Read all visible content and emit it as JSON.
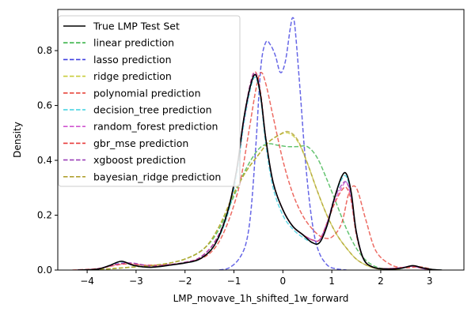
{
  "chart_data": {
    "type": "line",
    "xlabel": "LMP_movave_1h_shifted_1w_forward",
    "ylabel": "Density",
    "xlim": [
      -4.6,
      3.7
    ],
    "ylim": [
      0,
      0.95
    ],
    "xticks": [
      -4,
      -3,
      -2,
      -1,
      0,
      1,
      2,
      3
    ],
    "yticks": [
      0.0,
      0.2,
      0.4,
      0.6,
      0.8
    ],
    "ytick_labels": [
      "0.0",
      "0.2",
      "0.4",
      "0.6",
      "0.8"
    ],
    "legend_position": "upper-left",
    "series": [
      {
        "name": "True LMP Test Set",
        "color": "#000000",
        "dashed": false,
        "x": [
          -4.2,
          -3.8,
          -3.55,
          -3.3,
          -3.05,
          -2.7,
          -2.3,
          -2.0,
          -1.7,
          -1.4,
          -1.15,
          -0.95,
          -0.8,
          -0.65,
          -0.55,
          -0.45,
          -0.35,
          -0.2,
          0.0,
          0.2,
          0.4,
          0.6,
          0.75,
          0.9,
          1.05,
          1.2,
          1.3,
          1.4,
          1.5,
          1.65,
          1.85,
          2.1,
          2.4,
          2.65,
          2.85,
          3.05,
          3.25
        ],
        "y": [
          0.0,
          0.003,
          0.016,
          0.032,
          0.017,
          0.01,
          0.018,
          0.026,
          0.04,
          0.09,
          0.2,
          0.36,
          0.55,
          0.68,
          0.71,
          0.63,
          0.48,
          0.32,
          0.22,
          0.16,
          0.13,
          0.1,
          0.1,
          0.16,
          0.26,
          0.34,
          0.35,
          0.28,
          0.14,
          0.04,
          0.01,
          0.004,
          0.006,
          0.016,
          0.008,
          0.002,
          0.0
        ]
      },
      {
        "name": "linear prediction",
        "color": "#3cb44b",
        "dashed": true,
        "x": [
          -4.0,
          -3.5,
          -3.0,
          -2.5,
          -2.0,
          -1.6,
          -1.3,
          -1.0,
          -0.75,
          -0.5,
          -0.3,
          -0.1,
          0.1,
          0.3,
          0.5,
          0.7,
          0.9,
          1.1,
          1.3,
          1.5,
          1.7,
          1.9,
          2.1,
          2.4
        ],
        "y": [
          0.0,
          0.005,
          0.012,
          0.02,
          0.04,
          0.08,
          0.15,
          0.27,
          0.37,
          0.44,
          0.46,
          0.455,
          0.45,
          0.45,
          0.45,
          0.41,
          0.33,
          0.24,
          0.15,
          0.08,
          0.035,
          0.012,
          0.004,
          0.0
        ]
      },
      {
        "name": "lasso prediction",
        "color": "#4040e0",
        "dashed": true,
        "x": [
          -1.3,
          -1.1,
          -0.9,
          -0.75,
          -0.65,
          -0.55,
          -0.45,
          -0.35,
          -0.25,
          -0.15,
          -0.05,
          0.05,
          0.15,
          0.2,
          0.25,
          0.35,
          0.45,
          0.55,
          0.65,
          0.75,
          0.85,
          0.95,
          1.1,
          1.3
        ],
        "y": [
          0.0,
          0.008,
          0.04,
          0.1,
          0.22,
          0.46,
          0.74,
          0.83,
          0.82,
          0.78,
          0.72,
          0.76,
          0.88,
          0.92,
          0.88,
          0.66,
          0.42,
          0.24,
          0.12,
          0.06,
          0.03,
          0.012,
          0.004,
          0.0
        ]
      },
      {
        "name": "ridge prediction",
        "color": "#c8cc3a",
        "dashed": true,
        "x": [
          -4.0,
          -3.5,
          -3.0,
          -2.5,
          -2.0,
          -1.6,
          -1.3,
          -1.0,
          -0.75,
          -0.5,
          -0.3,
          -0.1,
          0.1,
          0.3,
          0.5,
          0.7,
          0.9,
          1.1,
          1.3,
          1.5,
          1.7,
          1.9,
          2.1,
          2.4
        ],
        "y": [
          0.0,
          0.005,
          0.012,
          0.02,
          0.04,
          0.08,
          0.16,
          0.28,
          0.36,
          0.42,
          0.465,
          0.49,
          0.5,
          0.47,
          0.39,
          0.29,
          0.2,
          0.13,
          0.08,
          0.04,
          0.018,
          0.006,
          0.002,
          0.0
        ]
      },
      {
        "name": "polynomial prediction",
        "color": "#e8463c",
        "dashed": true,
        "x": [
          -4.3,
          -3.8,
          -3.4,
          -3.2,
          -2.8,
          -2.3,
          -1.9,
          -1.5,
          -1.2,
          -0.9,
          -0.7,
          -0.55,
          -0.45,
          -0.35,
          -0.2,
          0.0,
          0.2,
          0.4,
          0.6,
          0.8,
          1.0,
          1.2,
          1.35,
          1.5,
          1.7,
          1.9,
          2.2,
          2.5,
          2.8,
          3.1
        ],
        "y": [
          0.0,
          0.005,
          0.018,
          0.022,
          0.018,
          0.02,
          0.03,
          0.06,
          0.14,
          0.3,
          0.5,
          0.66,
          0.72,
          0.68,
          0.56,
          0.4,
          0.28,
          0.2,
          0.15,
          0.12,
          0.12,
          0.17,
          0.28,
          0.3,
          0.18,
          0.07,
          0.02,
          0.008,
          0.012,
          0.0
        ]
      },
      {
        "name": "decision_tree prediction",
        "color": "#3cd0e0",
        "dashed": true,
        "x": [
          -4.2,
          -3.8,
          -3.55,
          -3.3,
          -3.05,
          -2.7,
          -2.3,
          -2.0,
          -1.7,
          -1.4,
          -1.15,
          -0.95,
          -0.8,
          -0.65,
          -0.55,
          -0.45,
          -0.35,
          -0.2,
          0.0,
          0.2,
          0.4,
          0.6,
          0.75,
          0.9,
          1.05,
          1.2,
          1.3,
          1.4,
          1.5,
          1.65,
          1.85,
          2.1,
          2.4,
          2.65,
          2.85,
          3.05,
          3.25
        ],
        "y": [
          0.0,
          0.003,
          0.016,
          0.03,
          0.017,
          0.01,
          0.018,
          0.026,
          0.04,
          0.09,
          0.19,
          0.34,
          0.53,
          0.67,
          0.7,
          0.62,
          0.46,
          0.3,
          0.2,
          0.15,
          0.12,
          0.1,
          0.1,
          0.16,
          0.26,
          0.33,
          0.34,
          0.27,
          0.14,
          0.04,
          0.01,
          0.004,
          0.006,
          0.015,
          0.008,
          0.002,
          0.0
        ]
      },
      {
        "name": "random_forest prediction",
        "color": "#d055d0",
        "dashed": true,
        "x": [
          -4.2,
          -3.8,
          -3.4,
          -3.1,
          -2.7,
          -2.3,
          -2.0,
          -1.7,
          -1.4,
          -1.15,
          -0.95,
          -0.8,
          -0.65,
          -0.55,
          -0.45,
          -0.35,
          -0.2,
          0.0,
          0.2,
          0.4,
          0.6,
          0.75,
          0.9,
          1.05,
          1.2,
          1.3,
          1.4,
          1.5,
          1.65,
          1.85,
          2.1,
          2.4,
          2.65,
          2.85,
          3.05
        ],
        "y": [
          0.0,
          0.004,
          0.02,
          0.025,
          0.015,
          0.02,
          0.028,
          0.045,
          0.1,
          0.2,
          0.36,
          0.54,
          0.68,
          0.71,
          0.63,
          0.48,
          0.32,
          0.22,
          0.16,
          0.13,
          0.11,
          0.11,
          0.17,
          0.25,
          0.3,
          0.32,
          0.26,
          0.14,
          0.04,
          0.01,
          0.005,
          0.008,
          0.014,
          0.006,
          0.0
        ]
      },
      {
        "name": "gbr_mse prediction",
        "color": "#e83a3a",
        "dashed": true,
        "x": [
          -4.2,
          -3.8,
          -3.4,
          -3.1,
          -2.7,
          -2.3,
          -2.0,
          -1.7,
          -1.4,
          -1.15,
          -0.95,
          -0.8,
          -0.65,
          -0.55,
          -0.45,
          -0.35,
          -0.2,
          0.0,
          0.2,
          0.4,
          0.6,
          0.75,
          0.9,
          1.05,
          1.2,
          1.3,
          1.4,
          1.5,
          1.65,
          1.85,
          2.1,
          2.4,
          2.65,
          2.85,
          3.05
        ],
        "y": [
          0.0,
          0.004,
          0.02,
          0.024,
          0.015,
          0.02,
          0.028,
          0.045,
          0.1,
          0.2,
          0.36,
          0.55,
          0.69,
          0.72,
          0.64,
          0.48,
          0.32,
          0.22,
          0.16,
          0.13,
          0.11,
          0.11,
          0.17,
          0.24,
          0.29,
          0.3,
          0.25,
          0.13,
          0.04,
          0.01,
          0.005,
          0.008,
          0.013,
          0.006,
          0.0
        ]
      },
      {
        "name": "xgboost prediction",
        "color": "#9b40b8",
        "dashed": true,
        "x": [
          -4.2,
          -3.8,
          -3.4,
          -3.1,
          -2.7,
          -2.3,
          -2.0,
          -1.7,
          -1.4,
          -1.15,
          -0.95,
          -0.8,
          -0.65,
          -0.55,
          -0.45,
          -0.35,
          -0.2,
          0.0,
          0.2,
          0.4,
          0.6,
          0.75,
          0.9,
          1.05,
          1.2,
          1.3,
          1.4,
          1.5,
          1.65,
          1.85,
          2.1,
          2.4,
          2.65,
          2.85,
          3.05
        ],
        "y": [
          0.0,
          0.004,
          0.022,
          0.026,
          0.015,
          0.02,
          0.028,
          0.045,
          0.1,
          0.2,
          0.36,
          0.55,
          0.69,
          0.715,
          0.63,
          0.48,
          0.32,
          0.22,
          0.16,
          0.13,
          0.11,
          0.11,
          0.17,
          0.26,
          0.31,
          0.32,
          0.27,
          0.14,
          0.04,
          0.01,
          0.005,
          0.008,
          0.014,
          0.006,
          0.0
        ]
      },
      {
        "name": "bayesian_ridge prediction",
        "color": "#b0a030",
        "dashed": true,
        "x": [
          -4.0,
          -3.5,
          -3.0,
          -2.5,
          -2.0,
          -1.6,
          -1.3,
          -1.0,
          -0.75,
          -0.5,
          -0.3,
          -0.1,
          0.1,
          0.3,
          0.5,
          0.7,
          0.9,
          1.1,
          1.3,
          1.5,
          1.7,
          1.9,
          2.1,
          2.4
        ],
        "y": [
          0.0,
          0.005,
          0.012,
          0.02,
          0.04,
          0.08,
          0.16,
          0.28,
          0.36,
          0.42,
          0.465,
          0.49,
          0.505,
          0.475,
          0.39,
          0.29,
          0.2,
          0.13,
          0.08,
          0.04,
          0.018,
          0.006,
          0.002,
          0.0
        ]
      }
    ]
  }
}
